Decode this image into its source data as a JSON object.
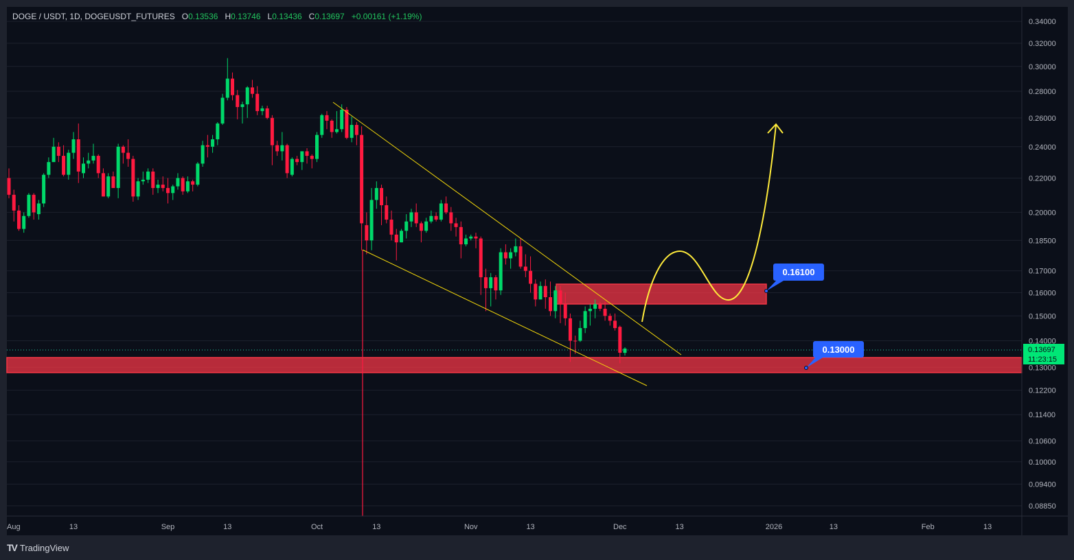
{
  "header": {
    "symbol": "DOGE / USDT, 1D, DOGEUSDT_FUTURES",
    "o_label": "O",
    "open": "0.13536",
    "h_label": "H",
    "high": "0.13746",
    "l_label": "L",
    "low": "0.13436",
    "c_label": "C",
    "close": "0.13697",
    "change": "+0.00161 (+1.19%)"
  },
  "current_price": {
    "value": "0.13697",
    "countdown": "11:23:15",
    "color": "#00e676"
  },
  "annotations": {
    "upper_zone_label": "0.16100",
    "lower_zone_label": "0.13000",
    "label_color": "#2962ff",
    "zone_color": "#f23645",
    "trendline_color": "#f5d90a"
  },
  "brand": {
    "logo": "TV",
    "name": "TradingView"
  },
  "chart_data": {
    "type": "candlestick",
    "interval": "1D",
    "first_date": "2025-07-31",
    "y_scale": "log",
    "ylim": [
      0.086,
      0.354
    ],
    "grid": true,
    "colors": {
      "up": "#00d96a",
      "down": "#ff1a40"
    },
    "y_ticks": [
      "0.34000",
      "0.32000",
      "0.30000",
      "0.28000",
      "0.26000",
      "0.24000",
      "0.22000",
      "0.20000",
      "0.18500",
      "0.17000",
      "0.16000",
      "0.15000",
      "0.14000",
      "0.13000",
      "0.12200",
      "0.11400",
      "0.10600",
      "0.10000",
      "0.09400",
      "0.08850"
    ],
    "x_ticks": [
      "Aug",
      "13",
      "Sep",
      "13",
      "Oct",
      "13",
      "Nov",
      "13",
      "Dec",
      "13",
      "2026",
      "13",
      "Feb",
      "13"
    ],
    "ohlc": [
      [
        0.22,
        0.226,
        0.208,
        0.21
      ],
      [
        0.21,
        0.213,
        0.195,
        0.201
      ],
      [
        0.201,
        0.204,
        0.19,
        0.191
      ],
      [
        0.191,
        0.2,
        0.189,
        0.198
      ],
      [
        0.198,
        0.211,
        0.197,
        0.21
      ],
      [
        0.21,
        0.211,
        0.196,
        0.2
      ],
      [
        0.199,
        0.207,
        0.196,
        0.205
      ],
      [
        0.205,
        0.223,
        0.203,
        0.222
      ],
      [
        0.222,
        0.233,
        0.22,
        0.23
      ],
      [
        0.23,
        0.246,
        0.23,
        0.24
      ],
      [
        0.24,
        0.243,
        0.23,
        0.234
      ],
      [
        0.234,
        0.241,
        0.221,
        0.222
      ],
      [
        0.222,
        0.238,
        0.219,
        0.236
      ],
      [
        0.236,
        0.25,
        0.232,
        0.245
      ],
      [
        0.245,
        0.256,
        0.217,
        0.224
      ],
      [
        0.223,
        0.233,
        0.22,
        0.229
      ],
      [
        0.229,
        0.236,
        0.226,
        0.231
      ],
      [
        0.231,
        0.242,
        0.229,
        0.234
      ],
      [
        0.234,
        0.235,
        0.22,
        0.223
      ],
      [
        0.223,
        0.226,
        0.209,
        0.209
      ],
      [
        0.209,
        0.223,
        0.208,
        0.221
      ],
      [
        0.221,
        0.224,
        0.214,
        0.214
      ],
      [
        0.214,
        0.242,
        0.208,
        0.24
      ],
      [
        0.24,
        0.241,
        0.229,
        0.236
      ],
      [
        0.236,
        0.245,
        0.227,
        0.232
      ],
      [
        0.232,
        0.234,
        0.206,
        0.209
      ],
      [
        0.209,
        0.22,
        0.207,
        0.218
      ],
      [
        0.218,
        0.224,
        0.216,
        0.219
      ],
      [
        0.219,
        0.226,
        0.217,
        0.224
      ],
      [
        0.224,
        0.226,
        0.21,
        0.214
      ],
      [
        0.214,
        0.219,
        0.211,
        0.216
      ],
      [
        0.216,
        0.221,
        0.212,
        0.214
      ],
      [
        0.214,
        0.22,
        0.205,
        0.211
      ],
      [
        0.211,
        0.216,
        0.207,
        0.215
      ],
      [
        0.215,
        0.223,
        0.213,
        0.22
      ],
      [
        0.22,
        0.221,
        0.21,
        0.212
      ],
      [
        0.212,
        0.221,
        0.211,
        0.218
      ],
      [
        0.218,
        0.219,
        0.212,
        0.216
      ],
      [
        0.216,
        0.23,
        0.215,
        0.229
      ],
      [
        0.229,
        0.244,
        0.227,
        0.241
      ],
      [
        0.241,
        0.248,
        0.233,
        0.24
      ],
      [
        0.24,
        0.248,
        0.236,
        0.245
      ],
      [
        0.245,
        0.257,
        0.241,
        0.256
      ],
      [
        0.256,
        0.278,
        0.255,
        0.275
      ],
      [
        0.275,
        0.307,
        0.273,
        0.29
      ],
      [
        0.29,
        0.295,
        0.273,
        0.277
      ],
      [
        0.277,
        0.281,
        0.259,
        0.268
      ],
      [
        0.268,
        0.272,
        0.256,
        0.27
      ],
      [
        0.27,
        0.284,
        0.26,
        0.283
      ],
      [
        0.283,
        0.289,
        0.275,
        0.278
      ],
      [
        0.278,
        0.284,
        0.262,
        0.265
      ],
      [
        0.265,
        0.269,
        0.262,
        0.267
      ],
      [
        0.267,
        0.269,
        0.259,
        0.26
      ],
      [
        0.26,
        0.262,
        0.228,
        0.241
      ],
      [
        0.241,
        0.244,
        0.234,
        0.237
      ],
      [
        0.237,
        0.25,
        0.231,
        0.241
      ],
      [
        0.241,
        0.242,
        0.22,
        0.223
      ],
      [
        0.222,
        0.233,
        0.221,
        0.232
      ],
      [
        0.232,
        0.234,
        0.228,
        0.23
      ],
      [
        0.23,
        0.237,
        0.225,
        0.237
      ],
      [
        0.237,
        0.239,
        0.229,
        0.234
      ],
      [
        0.234,
        0.235,
        0.226,
        0.232
      ],
      [
        0.232,
        0.25,
        0.23,
        0.248
      ],
      [
        0.248,
        0.263,
        0.246,
        0.262
      ],
      [
        0.262,
        0.265,
        0.252,
        0.258
      ],
      [
        0.258,
        0.259,
        0.246,
        0.25
      ],
      [
        0.25,
        0.265,
        0.249,
        0.252
      ],
      [
        0.252,
        0.27,
        0.25,
        0.266
      ],
      [
        0.266,
        0.268,
        0.245,
        0.246
      ],
      [
        0.246,
        0.261,
        0.243,
        0.255
      ],
      [
        0.255,
        0.257,
        0.241,
        0.248
      ],
      [
        0.248,
        0.254,
        0.18,
        0.194
      ],
      [
        0.193,
        0.2,
        0.178,
        0.185
      ],
      [
        0.185,
        0.214,
        0.18,
        0.207
      ],
      [
        0.207,
        0.218,
        0.202,
        0.214
      ],
      [
        0.214,
        0.216,
        0.193,
        0.204
      ],
      [
        0.204,
        0.209,
        0.194,
        0.196
      ],
      [
        0.196,
        0.201,
        0.185,
        0.188
      ],
      [
        0.188,
        0.191,
        0.175,
        0.184
      ],
      [
        0.184,
        0.191,
        0.184,
        0.19
      ],
      [
        0.19,
        0.199,
        0.186,
        0.195
      ],
      [
        0.195,
        0.202,
        0.192,
        0.2
      ],
      [
        0.2,
        0.205,
        0.192,
        0.194
      ],
      [
        0.194,
        0.195,
        0.184,
        0.19
      ],
      [
        0.19,
        0.197,
        0.189,
        0.195
      ],
      [
        0.195,
        0.201,
        0.194,
        0.198
      ],
      [
        0.198,
        0.2,
        0.195,
        0.196
      ],
      [
        0.196,
        0.207,
        0.195,
        0.205
      ],
      [
        0.205,
        0.209,
        0.199,
        0.2
      ],
      [
        0.2,
        0.203,
        0.19,
        0.194
      ],
      [
        0.194,
        0.197,
        0.187,
        0.192
      ],
      [
        0.192,
        0.195,
        0.176,
        0.183
      ],
      [
        0.183,
        0.188,
        0.182,
        0.186
      ],
      [
        0.186,
        0.188,
        0.185,
        0.187
      ],
      [
        0.187,
        0.189,
        0.181,
        0.186
      ],
      [
        0.186,
        0.187,
        0.159,
        0.167
      ],
      [
        0.167,
        0.171,
        0.152,
        0.162
      ],
      [
        0.162,
        0.169,
        0.154,
        0.167
      ],
      [
        0.167,
        0.168,
        0.157,
        0.161
      ],
      [
        0.161,
        0.181,
        0.159,
        0.179
      ],
      [
        0.179,
        0.183,
        0.173,
        0.176
      ],
      [
        0.176,
        0.181,
        0.171,
        0.179
      ],
      [
        0.179,
        0.186,
        0.177,
        0.182
      ],
      [
        0.182,
        0.186,
        0.171,
        0.172
      ],
      [
        0.172,
        0.178,
        0.167,
        0.17
      ],
      [
        0.17,
        0.177,
        0.16,
        0.164
      ],
      [
        0.164,
        0.166,
        0.154,
        0.157
      ],
      [
        0.157,
        0.165,
        0.157,
        0.163
      ],
      [
        0.163,
        0.166,
        0.153,
        0.158
      ],
      [
        0.158,
        0.165,
        0.15,
        0.152
      ],
      [
        0.152,
        0.163,
        0.149,
        0.161
      ],
      [
        0.161,
        0.163,
        0.147,
        0.155
      ],
      [
        0.155,
        0.16,
        0.146,
        0.149
      ],
      [
        0.149,
        0.151,
        0.132,
        0.14
      ],
      [
        0.14,
        0.142,
        0.135,
        0.1398
      ],
      [
        0.14,
        0.148,
        0.1395,
        0.145
      ],
      [
        0.145,
        0.154,
        0.143,
        0.152
      ],
      [
        0.152,
        0.155,
        0.146,
        0.153
      ],
      [
        0.153,
        0.157,
        0.149,
        0.155
      ],
      [
        0.155,
        0.156,
        0.152,
        0.153
      ],
      [
        0.153,
        0.156,
        0.148,
        0.15
      ],
      [
        0.15,
        0.151,
        0.146,
        0.148
      ],
      [
        0.148,
        0.151,
        0.144,
        0.145
      ],
      [
        0.1455,
        0.146,
        0.1315,
        0.1354
      ],
      [
        0.13536,
        0.13746,
        0.13436,
        0.13697
      ]
    ]
  }
}
